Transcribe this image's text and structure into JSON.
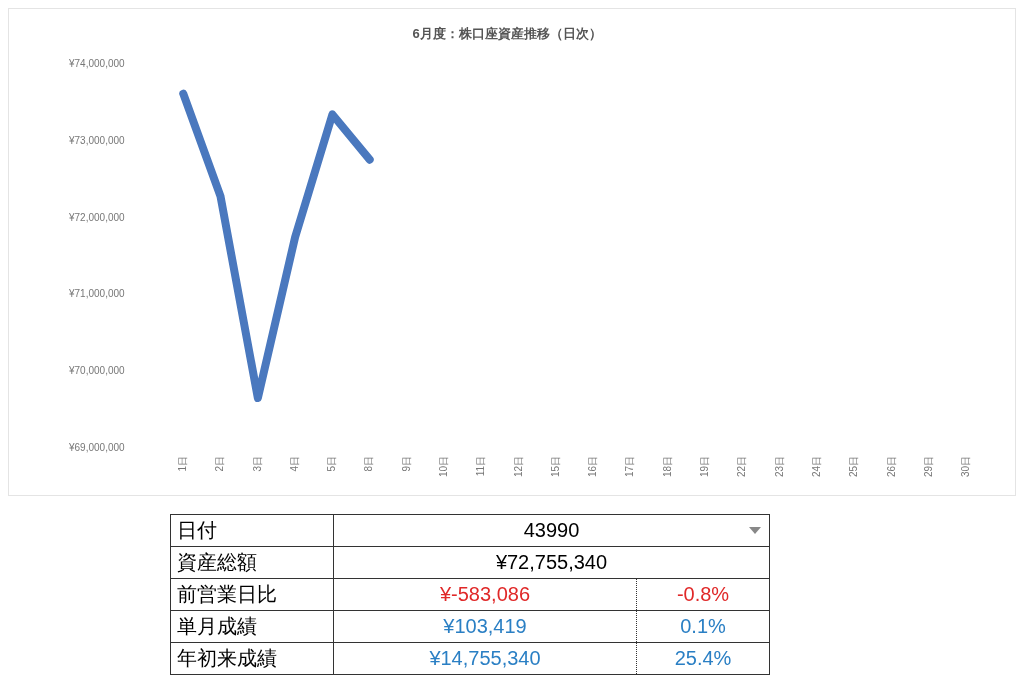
{
  "chart_data": [
    {
      "type": "line",
      "title": "6月度：株口座資産推移（日次）",
      "categories": [
        "1日",
        "2日",
        "3日",
        "4日",
        "5日",
        "8日",
        "9日",
        "10日",
        "11日",
        "12日",
        "15日",
        "16日",
        "17日",
        "18日",
        "19日",
        "22日",
        "23日",
        "24日",
        "25日",
        "26日",
        "29日",
        "30日"
      ],
      "series": [
        {
          "color": "#4a78be",
          "values": [
            73620000,
            72280000,
            69650000,
            71750000,
            73350000,
            72760000,
            null,
            null,
            null,
            null,
            null,
            null,
            null,
            null,
            null,
            null,
            null,
            null,
            null,
            null,
            null,
            null
          ]
        }
      ],
      "ylim": [
        69000000,
        74000000
      ],
      "yticks": [
        {
          "value": 69000000,
          "label": "¥69,000,000"
        },
        {
          "value": 70000000,
          "label": "¥70,000,000"
        },
        {
          "value": 71000000,
          "label": "¥71,000,000"
        },
        {
          "value": 72000000,
          "label": "¥72,000,000"
        },
        {
          "value": 73000000,
          "label": "¥73,000,000"
        },
        {
          "value": 74000000,
          "label": "¥74,000,000"
        }
      ],
      "grid": false,
      "legend": false,
      "marker": "none",
      "line_style": "solid"
    },
    {
      "type": "other",
      "categories": [
        "日付",
        "資産総額",
        "前営業日比",
        "単月成績",
        "年初来成績"
      ],
      "series": [
        {
          "values": [
            43990,
            72755340,
            -583086,
            103419,
            14755340
          ],
          "value_labels": [
            "43990",
            "¥72,755,340",
            "¥-583,086",
            "¥103,419",
            "¥14,755,340"
          ],
          "colors": [
            "#000000",
            "#000000",
            "#e02828",
            "#2a7fc4",
            "#2a7fc4"
          ]
        },
        {
          "values": [
            null,
            null,
            -0.8,
            0.1,
            25.4
          ],
          "value_labels": [
            null,
            null,
            "-0.8%",
            "0.1%",
            "25.4%"
          ],
          "colors": [
            null,
            null,
            "#e02828",
            "#2a7fc4",
            "#2a7fc4"
          ]
        }
      ]
    }
  ]
}
